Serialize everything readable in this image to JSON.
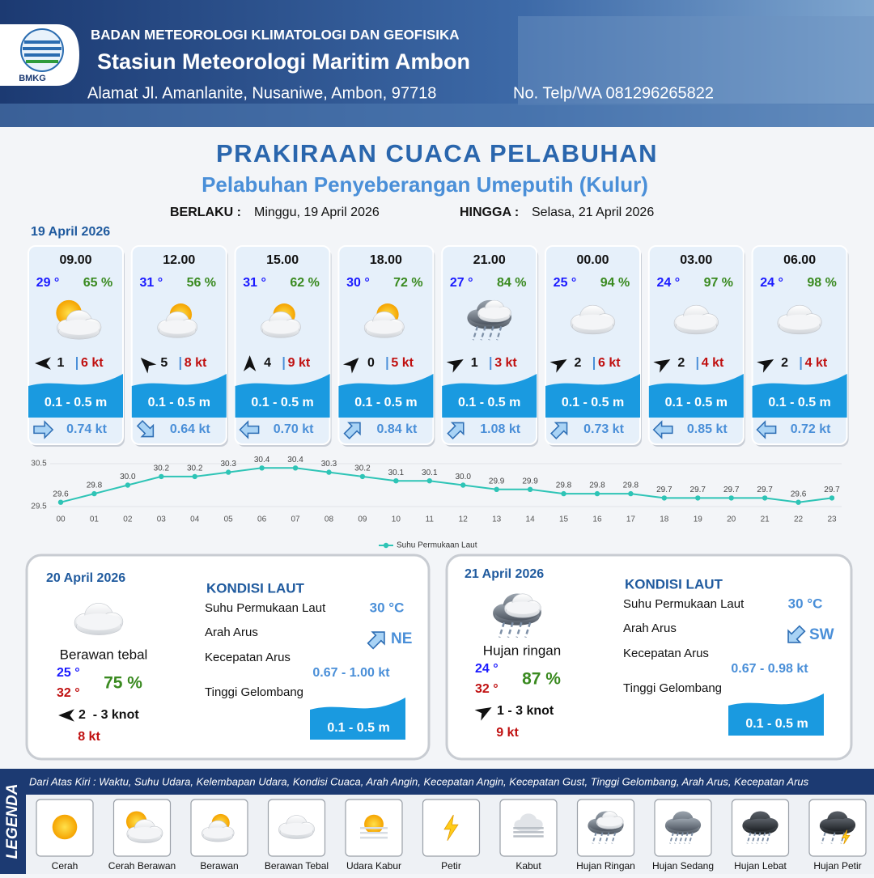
{
  "header": {
    "agency": "BADAN METEOROLOGI KLIMATOLOGI DAN GEOFISIKA",
    "station": "Stasiun Meteorologi Maritim Ambon",
    "address": "Alamat Jl. Amanlanite, Nusaniwe, Ambon, 97718",
    "phone": "No. Telp/WA  081296265822",
    "logo_text": "BMKG"
  },
  "title": "PRAKIRAAN CUACA PELABUHAN",
  "subtitle": "Pelabuhan Penyeberangan Umeputih (Kulur)",
  "validity": {
    "from_label": "BERLAKU :",
    "from": "Minggu, 19 April 2026",
    "to_label": "HINGGA :",
    "to": "Selasa, 21 April 2026"
  },
  "today": {
    "date": "19 April 2026",
    "forecasts": [
      {
        "time": "09.00",
        "temperature": "29 °",
        "humidity": "65 %",
        "wind_speed": "1",
        "gust": "6 kt",
        "wave": "0.1 - 0.5 m",
        "current_speed": "0.74 kt"
      },
      {
        "time": "12.00",
        "temperature": "31 °",
        "humidity": "56 %",
        "wind_speed": "5",
        "gust": "8 kt",
        "wave": "0.1 - 0.5 m",
        "current_speed": "0.64 kt"
      },
      {
        "time": "15.00",
        "temperature": "31 °",
        "humidity": "62 %",
        "wind_speed": "4",
        "gust": "9 kt",
        "wave": "0.1 - 0.5 m",
        "current_speed": "0.70 kt"
      },
      {
        "time": "18.00",
        "temperature": "30 °",
        "humidity": "72 %",
        "wind_speed": "0",
        "gust": "5 kt",
        "wave": "0.1 - 0.5 m",
        "current_speed": "0.84 kt"
      },
      {
        "time": "21.00",
        "temperature": "27 °",
        "humidity": "84 %",
        "wind_speed": "1",
        "gust": "3 kt",
        "wave": "0.1 - 0.5 m",
        "current_speed": "1.08 kt"
      },
      {
        "time": "00.00",
        "temperature": "25 °",
        "humidity": "94 %",
        "wind_speed": "2",
        "gust": "6 kt",
        "wave": "0.1 - 0.5 m",
        "current_speed": "0.73 kt"
      },
      {
        "time": "03.00",
        "temperature": "24 °",
        "humidity": "97 %",
        "wind_speed": "2",
        "gust": "4 kt",
        "wave": "0.1 - 0.5 m",
        "current_speed": "0.85 kt"
      },
      {
        "time": "06.00",
        "temperature": "24 °",
        "humidity": "98 %",
        "wind_speed": "2",
        "gust": "4 kt",
        "wave": "0.1 - 0.5 m",
        "current_speed": "0.72 kt"
      }
    ]
  },
  "sst_chart": {
    "type": "line",
    "categories": [
      "00",
      "01",
      "02",
      "03",
      "04",
      "05",
      "06",
      "07",
      "08",
      "09",
      "10",
      "11",
      "12",
      "13",
      "14",
      "15",
      "16",
      "17",
      "18",
      "19",
      "20",
      "21",
      "22",
      "23"
    ],
    "series": [
      {
        "name": "Suhu Permukaan Laut",
        "color": "#2ec4b6",
        "values": [
          29.6,
          29.8,
          30.0,
          30.2,
          30.2,
          30.3,
          30.4,
          30.4,
          30.3,
          30.2,
          30.1,
          30.1,
          30.0,
          29.9,
          29.9,
          29.8,
          29.8,
          29.8,
          29.7,
          29.7,
          29.7,
          29.7,
          29.6,
          29.7
        ],
        "value_labels": [
          "29.6",
          "29.8",
          "30.0",
          "30.2",
          "30.2",
          "30.3",
          "30.4",
          "30.4",
          "30.3",
          "30.2",
          "30.1",
          "30.1",
          "30.0",
          "29.9",
          "29.9",
          "29.8",
          "29.8",
          "29.8",
          "29.7",
          "29.7",
          "29.7",
          "29.7",
          "29.6",
          "29.7"
        ]
      }
    ],
    "ylim": [
      29.5,
      30.5
    ],
    "yticks": [
      29.5,
      30.5
    ]
  },
  "outlook": [
    {
      "date": "20 April 2026",
      "condition": "Berawan tebal",
      "temp_min": "25 °",
      "temp_max": "32 °",
      "humidity": "75 %",
      "wind_speed": "2  - 3 knot",
      "gust": "8 kt",
      "sea_heading": "KONDISI LAUT",
      "sst_label": "Suhu Permukaan Laut",
      "sst": "30 °C",
      "current_dir_label": "Arah Arus",
      "current_dir": "NE",
      "current_speed_label": "Kecepatan Arus",
      "current_speed": "0.67 - 1.00 kt",
      "wave_label": "Tinggi Gelombang",
      "wave": "0.1 - 0.5 m"
    },
    {
      "date": "21 April 2026",
      "condition": "Hujan ringan",
      "temp_min": "24 °",
      "temp_max": "32 °",
      "humidity": "87 %",
      "wind_speed": "1 - 3 knot",
      "gust": "9 kt",
      "sea_heading": "KONDISI LAUT",
      "sst_label": "Suhu Permukaan Laut",
      "sst": "30 °C",
      "current_dir_label": "Arah Arus",
      "current_dir": "SW",
      "current_speed_label": "Kecepatan Arus",
      "current_speed": "0.67 - 0.98 kt",
      "wave_label": "Tinggi Gelombang",
      "wave": "0.1 - 0.5 m"
    }
  ],
  "legend": {
    "title": "LEGENDA",
    "description": "Dari Atas Kiri : Waktu, Suhu Udara, Kelembapan Udara, Kondisi Cuaca, Arah Angin, Kecepatan Angin, Kecepatan Gust, Tinggi Gelombang, Arah Arus, Kecepatan Arus",
    "items": [
      "Cerah",
      "Cerah Berawan",
      "Berawan",
      "Berawan Tebal",
      "Udara Kabur",
      "Petir",
      "Kabut",
      "Hujan Ringan",
      "Hujan Sedang",
      "Hujan Lebat",
      "Hujan Petir"
    ]
  }
}
